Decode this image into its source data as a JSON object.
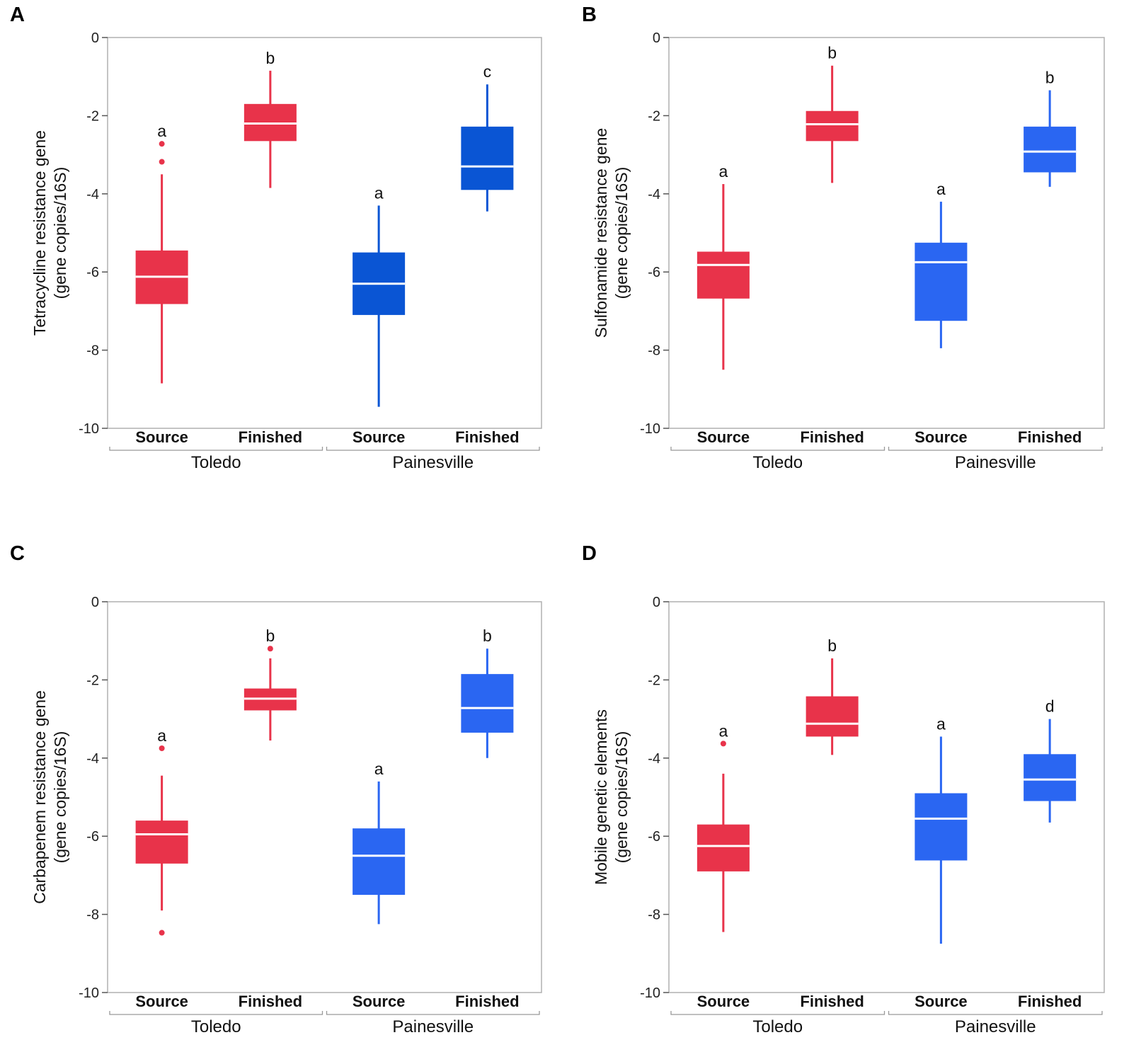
{
  "colors": {
    "toledo": "#e8334a",
    "painesville_dark": "#0a55d4",
    "painesville_light": "#2a66f2",
    "median_line": "#ffffff",
    "axis": "#b0b0b0"
  },
  "chart_data": [
    {
      "panel": "A",
      "type": "box",
      "ylabel": [
        "Tetracycline resistance gene",
        "(gene copies/16S)"
      ],
      "ylim": [
        -10,
        0
      ],
      "yticks": [
        0,
        -2,
        -4,
        -6,
        -8,
        -10
      ],
      "groups": [
        "Toledo",
        "Painesville"
      ],
      "categories": [
        "Source",
        "Finished",
        "Source",
        "Finished"
      ],
      "painesville_color": "dark",
      "boxes": [
        {
          "group": "Toledo",
          "category": "Source",
          "whisker_high": -3.5,
          "q3": -5.45,
          "median": -6.12,
          "q1": -6.82,
          "whisker_low": -8.85,
          "outliers": [
            -2.72,
            -3.18
          ],
          "letter": "a"
        },
        {
          "group": "Toledo",
          "category": "Finished",
          "whisker_high": -0.85,
          "q3": -1.7,
          "median": -2.2,
          "q1": -2.65,
          "whisker_low": -3.85,
          "outliers": [],
          "letter": "b"
        },
        {
          "group": "Painesville",
          "category": "Source",
          "whisker_high": -4.3,
          "q3": -5.5,
          "median": -6.3,
          "q1": -7.1,
          "whisker_low": -9.45,
          "outliers": [],
          "letter": "a"
        },
        {
          "group": "Painesville",
          "category": "Finished",
          "whisker_high": -1.2,
          "q3": -2.28,
          "median": -3.3,
          "q1": -3.9,
          "whisker_low": -4.45,
          "outliers": [],
          "letter": "c"
        }
      ]
    },
    {
      "panel": "B",
      "type": "box",
      "ylabel": [
        "Sulfonamide resistance gene",
        "(gene copies/16S)"
      ],
      "ylim": [
        -10,
        0
      ],
      "yticks": [
        0,
        -2,
        -4,
        -6,
        -8,
        -10
      ],
      "groups": [
        "Toledo",
        "Painesville"
      ],
      "categories": [
        "Source",
        "Finished",
        "Source",
        "Finished"
      ],
      "painesville_color": "light",
      "boxes": [
        {
          "group": "Toledo",
          "category": "Source",
          "whisker_high": -3.75,
          "q3": -5.48,
          "median": -5.82,
          "q1": -6.68,
          "whisker_low": -8.5,
          "outliers": [],
          "letter": "a"
        },
        {
          "group": "Toledo",
          "category": "Finished",
          "whisker_high": -0.72,
          "q3": -1.88,
          "median": -2.22,
          "q1": -2.65,
          "whisker_low": -3.72,
          "outliers": [],
          "letter": "b"
        },
        {
          "group": "Painesville",
          "category": "Source",
          "whisker_high": -4.2,
          "q3": -5.25,
          "median": -5.75,
          "q1": -7.25,
          "whisker_low": -7.95,
          "outliers": [],
          "letter": "a"
        },
        {
          "group": "Painesville",
          "category": "Finished",
          "whisker_high": -1.35,
          "q3": -2.28,
          "median": -2.92,
          "q1": -3.45,
          "whisker_low": -3.82,
          "outliers": [],
          "letter": "b"
        }
      ]
    },
    {
      "panel": "C",
      "type": "box",
      "ylabel": [
        "Carbapenem resistance gene",
        "(gene copies/16S)"
      ],
      "ylim": [
        -10,
        0
      ],
      "yticks": [
        0,
        -2,
        -4,
        -6,
        -8,
        -10
      ],
      "groups": [
        "Toledo",
        "Painesville"
      ],
      "categories": [
        "Source",
        "Finished",
        "Source",
        "Finished"
      ],
      "painesville_color": "light",
      "boxes": [
        {
          "group": "Toledo",
          "category": "Source",
          "whisker_high": -4.45,
          "q3": -5.6,
          "median": -5.95,
          "q1": -6.7,
          "whisker_low": -7.9,
          "outliers": [
            -3.75,
            -8.47
          ],
          "letter": "a"
        },
        {
          "group": "Toledo",
          "category": "Finished",
          "whisker_high": -1.45,
          "q3": -2.22,
          "median": -2.48,
          "q1": -2.78,
          "whisker_low": -3.55,
          "outliers": [
            -1.2
          ],
          "letter": "b"
        },
        {
          "group": "Painesville",
          "category": "Source",
          "whisker_high": -4.6,
          "q3": -5.8,
          "median": -6.5,
          "q1": -7.5,
          "whisker_low": -8.25,
          "outliers": [],
          "letter": "a"
        },
        {
          "group": "Painesville",
          "category": "Finished",
          "whisker_high": -1.2,
          "q3": -1.85,
          "median": -2.72,
          "q1": -3.35,
          "whisker_low": -4.0,
          "outliers": [],
          "letter": "b"
        }
      ]
    },
    {
      "panel": "D",
      "type": "box",
      "ylabel": [
        "Mobile genetic elements",
        "(gene copies/16S)"
      ],
      "ylim": [
        -10,
        0
      ],
      "yticks": [
        0,
        -2,
        -4,
        -6,
        -8,
        -10
      ],
      "groups": [
        "Toledo",
        "Painesville"
      ],
      "categories": [
        "Source",
        "Finished",
        "Source",
        "Finished"
      ],
      "painesville_color": "light",
      "boxes": [
        {
          "group": "Toledo",
          "category": "Source",
          "whisker_high": -4.4,
          "q3": -5.7,
          "median": -6.25,
          "q1": -6.9,
          "whisker_low": -8.45,
          "outliers": [
            -3.63
          ],
          "letter": "a"
        },
        {
          "group": "Toledo",
          "category": "Finished",
          "whisker_high": -1.45,
          "q3": -2.42,
          "median": -3.12,
          "q1": -3.45,
          "whisker_low": -3.92,
          "outliers": [],
          "letter": "b"
        },
        {
          "group": "Painesville",
          "category": "Source",
          "whisker_high": -3.45,
          "q3": -4.9,
          "median": -5.55,
          "q1": -6.62,
          "whisker_low": -8.75,
          "outliers": [],
          "letter": "a"
        },
        {
          "group": "Painesville",
          "category": "Finished",
          "whisker_high": -3.0,
          "q3": -3.9,
          "median": -4.55,
          "q1": -5.1,
          "whisker_low": -5.65,
          "outliers": [],
          "letter": "d"
        }
      ]
    }
  ]
}
